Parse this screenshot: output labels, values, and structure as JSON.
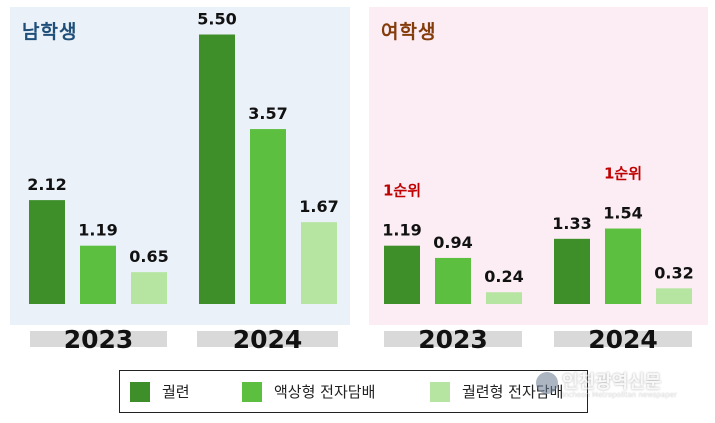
{
  "colors": {
    "cigarette": "#3e8e2a",
    "liquid": "#5dbf3f",
    "heated": "#b5e5a0",
    "male_title": "#1f4e79",
    "female_title": "#843c0c",
    "rank_note": "#c00000"
  },
  "chart_data": [
    {
      "type": "bar",
      "title": "남학생",
      "categories": [
        "2023",
        "2024"
      ],
      "series": [
        {
          "name": "궐련",
          "values": [
            2.12,
            5.5
          ],
          "labels": [
            "2.12",
            "5.50"
          ]
        },
        {
          "name": "액상형 전자담배",
          "values": [
            1.19,
            3.57
          ],
          "labels": [
            "1.19",
            "3.57"
          ]
        },
        {
          "name": "궐련형 전자담배",
          "values": [
            0.65,
            1.67
          ],
          "labels": [
            "0.65",
            "1.67"
          ]
        }
      ],
      "annotations": []
    },
    {
      "type": "bar",
      "title": "여학생",
      "categories": [
        "2023",
        "2024"
      ],
      "series": [
        {
          "name": "궐련",
          "values": [
            1.19,
            1.33
          ],
          "labels": [
            "1.19",
            "1.33"
          ]
        },
        {
          "name": "액상형 전자담배",
          "values": [
            0.94,
            1.54
          ],
          "labels": [
            "0.94",
            "1.54"
          ]
        },
        {
          "name": "궐련형 전자담배",
          "values": [
            0.24,
            0.32
          ],
          "labels": [
            "0.24",
            "0.32"
          ]
        }
      ],
      "annotations": [
        {
          "text": "1순위",
          "category": "2023",
          "series": 0
        },
        {
          "text": "1순위",
          "category": "2024",
          "series": 1
        }
      ]
    }
  ],
  "legend": [
    {
      "label": "궐련"
    },
    {
      "label": "액상형 전자담배"
    },
    {
      "label": "궐련형 전자담배"
    }
  ],
  "watermark": {
    "title": "인천광역신문",
    "subtitle": "Incheon Metropolitan newspaper"
  }
}
